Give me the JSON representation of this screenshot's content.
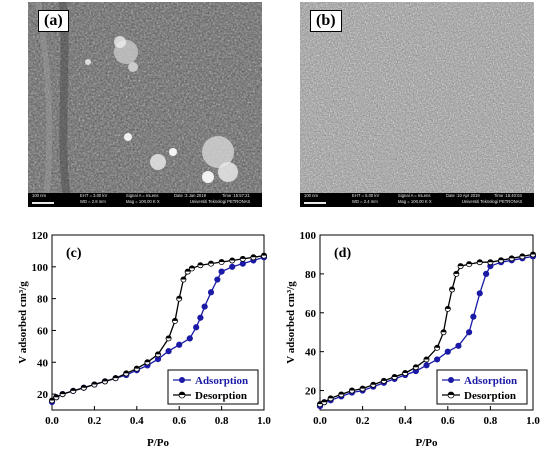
{
  "sem": [
    {
      "tag": "(a)",
      "scale": "100 nm",
      "eht": "EHT = 3.00 kV",
      "wd": "WD = 2.8 mm",
      "signal": "Signal A = InLens",
      "mag": "Mag = 100.00 K X",
      "date": "Date :3 Jan 2019",
      "time": "Time :15:57:21",
      "org": "Universiti Teknologi PETRONAS"
    },
    {
      "tag": "(b)",
      "scale": "100 nm",
      "eht": "EHT = 5.00 kV",
      "wd": "WD = 2.4 mm",
      "signal": "Signal A = InLens",
      "mag": "Mag = 100.00 K X",
      "date": "Date :10 Apr 2019",
      "time": "Time :16:40:04",
      "org": "Universiti Teknologi PETRONAS"
    }
  ],
  "chart_data": [
    {
      "type": "line",
      "panel": "(c)",
      "xlabel": "P/Po",
      "ylabel": "V adsorbed cm³/g",
      "xlim": [
        0,
        1.0
      ],
      "ylim": [
        10,
        120
      ],
      "xticks": [
        "0.0",
        "0.2",
        "0.4",
        "0.6",
        "0.8",
        "1.0"
      ],
      "yticks": [
        "20",
        "40",
        "60",
        "80",
        "100",
        "120"
      ],
      "legend_position": "bottom-right",
      "series": [
        {
          "name": "Adsorption",
          "color": "#1a1aa6",
          "marker": "filled-circle",
          "x": [
            0.0,
            0.02,
            0.05,
            0.1,
            0.15,
            0.2,
            0.25,
            0.3,
            0.35,
            0.4,
            0.45,
            0.5,
            0.55,
            0.6,
            0.65,
            0.68,
            0.7,
            0.72,
            0.75,
            0.78,
            0.8,
            0.85,
            0.9,
            0.95,
            1.0
          ],
          "y": [
            15,
            18,
            20,
            22,
            24,
            26,
            28,
            30,
            32,
            35,
            38,
            42,
            47,
            51,
            55,
            62,
            68,
            75,
            84,
            92,
            97,
            100,
            102,
            104,
            106
          ]
        },
        {
          "name": "Desorption",
          "color": "#000000",
          "marker": "half-filled-circle",
          "x": [
            0.0,
            0.02,
            0.05,
            0.1,
            0.15,
            0.2,
            0.25,
            0.3,
            0.35,
            0.4,
            0.45,
            0.5,
            0.55,
            0.58,
            0.6,
            0.62,
            0.64,
            0.66,
            0.7,
            0.75,
            0.8,
            0.85,
            0.9,
            0.95,
            1.0
          ],
          "y": [
            16,
            18,
            20,
            22,
            24,
            26,
            28,
            30,
            33,
            36,
            40,
            45,
            55,
            66,
            80,
            92,
            97,
            99,
            101,
            102,
            103,
            104,
            105,
            106,
            107
          ]
        }
      ]
    },
    {
      "type": "line",
      "panel": "(d)",
      "xlabel": "P/Po",
      "ylabel": "V adsorbed cm³/g",
      "xlim": [
        0,
        1.0
      ],
      "ylim": [
        10,
        100
      ],
      "xticks": [
        "0.0",
        "0.2",
        "0.4",
        "0.6",
        "0.8",
        "1.0"
      ],
      "yticks": [
        "20",
        "40",
        "60",
        "80",
        "100"
      ],
      "legend_position": "bottom-right",
      "series": [
        {
          "name": "Adsorption",
          "color": "#1a1aa6",
          "marker": "filled-circle",
          "x": [
            0.0,
            0.02,
            0.05,
            0.1,
            0.15,
            0.2,
            0.25,
            0.3,
            0.35,
            0.4,
            0.45,
            0.5,
            0.55,
            0.6,
            0.65,
            0.7,
            0.72,
            0.75,
            0.78,
            0.8,
            0.85,
            0.9,
            0.95,
            1.0
          ],
          "y": [
            12,
            14,
            15,
            17,
            19,
            20,
            22,
            24,
            26,
            28,
            30,
            33,
            36,
            40,
            43,
            50,
            58,
            70,
            80,
            84,
            86,
            87,
            88,
            89
          ]
        },
        {
          "name": "Desorption",
          "color": "#000000",
          "marker": "half-filled-circle",
          "x": [
            0.0,
            0.02,
            0.05,
            0.1,
            0.15,
            0.2,
            0.25,
            0.3,
            0.35,
            0.4,
            0.45,
            0.5,
            0.55,
            0.58,
            0.6,
            0.62,
            0.64,
            0.66,
            0.7,
            0.75,
            0.8,
            0.85,
            0.9,
            0.95,
            1.0
          ],
          "y": [
            13,
            14,
            16,
            18,
            20,
            21,
            23,
            25,
            27,
            29,
            32,
            36,
            42,
            50,
            62,
            72,
            80,
            84,
            85,
            86,
            86,
            87,
            88,
            89,
            90
          ]
        }
      ]
    }
  ]
}
